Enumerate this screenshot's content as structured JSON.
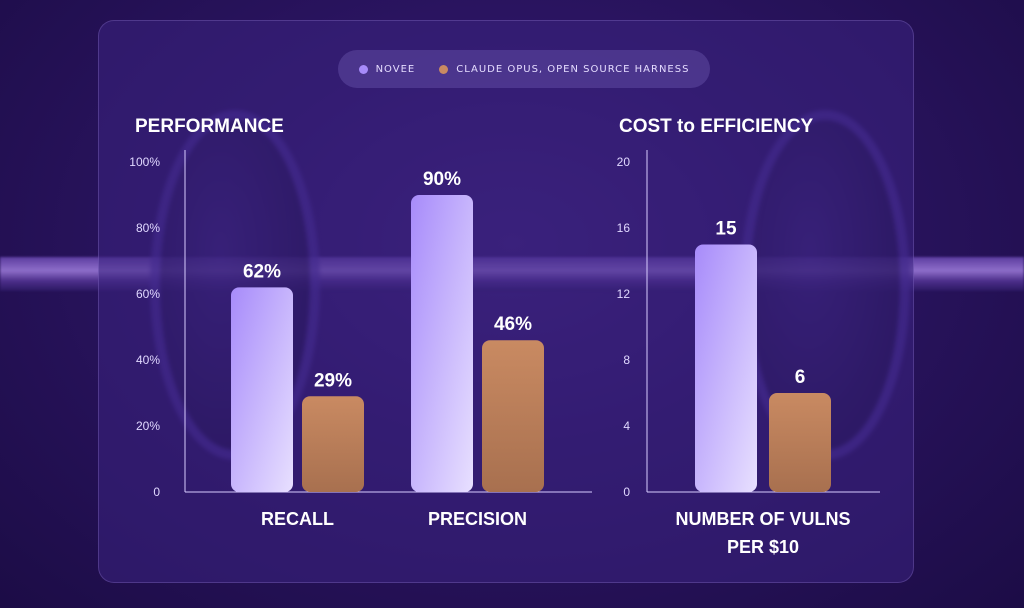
{
  "legend": [
    {
      "label": "NOVEE",
      "color": "#a78bfa"
    },
    {
      "label": "CLAUDE OPUS, OPEN SOURCE HARNESS",
      "color": "#c98a62"
    }
  ],
  "colors": {
    "novee": "#a78bfa",
    "claude": "#c98a62",
    "axis": "#d8ccff"
  },
  "chart_data": [
    {
      "type": "bar",
      "title": "PERFORMANCE",
      "categories": [
        "RECALL",
        "PRECISION"
      ],
      "series": [
        {
          "name": "NOVEE",
          "values": [
            62,
            90
          ],
          "labels": [
            "62%",
            "90%"
          ]
        },
        {
          "name": "CLAUDE OPUS, OPEN SOURCE HARNESS",
          "values": [
            29,
            46
          ],
          "labels": [
            "29%",
            "46%"
          ]
        }
      ],
      "yticks": [
        "0",
        "20%",
        "40%",
        "60%",
        "80%",
        "100%"
      ],
      "ylim": [
        0,
        100
      ]
    },
    {
      "type": "bar",
      "title": "COST to EFFICIENCY",
      "categories": [
        "NUMBER OF VULNS PER $10"
      ],
      "category_lines": [
        [
          "NUMBER OF VULNS",
          "PER $10"
        ]
      ],
      "series": [
        {
          "name": "NOVEE",
          "values": [
            15
          ],
          "labels": [
            "15"
          ]
        },
        {
          "name": "CLAUDE OPUS, OPEN SOURCE HARNESS",
          "values": [
            6
          ],
          "labels": [
            "6"
          ]
        }
      ],
      "yticks": [
        "0",
        "4",
        "8",
        "12",
        "16",
        "20"
      ],
      "ylim": [
        0,
        20
      ]
    }
  ]
}
